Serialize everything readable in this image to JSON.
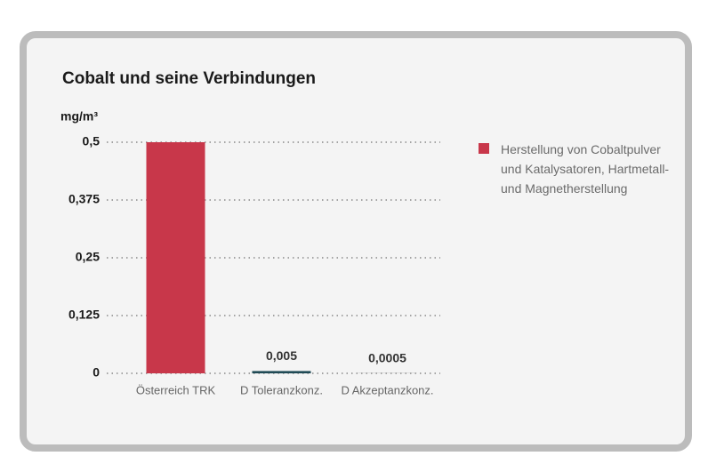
{
  "chart_data": {
    "type": "bar",
    "title": "Cobalt und seine Verbindungen",
    "y_label": "mg/m³",
    "categories": [
      "Österreich TRK",
      "D Toleranzkonz.",
      "D Akzeptanzkonz."
    ],
    "values": [
      0.5,
      0.005,
      0.0005
    ],
    "value_labels": [
      null,
      "0,005",
      "0,0005"
    ],
    "colors": [
      "#c8374a",
      "#1f4a55",
      "#9a9a9a"
    ],
    "ylim": [
      0,
      0.5
    ],
    "yticks": [
      0,
      {
        "value": 0.125,
        "label": "0,125"
      },
      {
        "value": 0.25,
        "label": "0,25"
      },
      {
        "value": 0.375,
        "label": "0,375"
      },
      {
        "value": 0.5,
        "label": "0,5"
      }
    ],
    "grid": true,
    "legend": {
      "label": "Herstellung von Cobaltpulver und Katalysatoren, Hartmetall- und Magnetherstellung",
      "color": "#c8374a"
    }
  }
}
